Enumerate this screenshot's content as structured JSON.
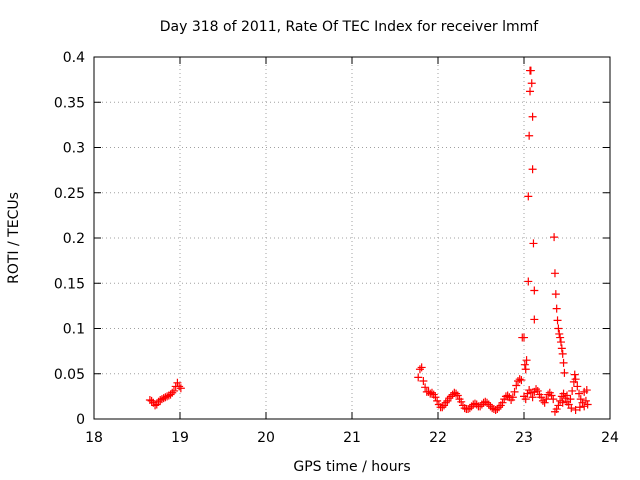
{
  "chart_data": {
    "type": "scatter",
    "title": "Day 318 of 2011, Rate Of TEC Index for receiver lmmf",
    "xlabel": "GPS time / hours",
    "ylabel": "ROTI / TECUs",
    "xlim": [
      18,
      24
    ],
    "ylim": [
      0,
      0.4
    ],
    "grid": true,
    "marker": "+",
    "marker_color": "#ff0000",
    "x_ticks": [
      {
        "value": 18,
        "label": "18"
      },
      {
        "value": 19,
        "label": "19"
      },
      {
        "value": 20,
        "label": "20"
      },
      {
        "value": 21,
        "label": "21"
      },
      {
        "value": 22,
        "label": "22"
      },
      {
        "value": 23,
        "label": "23"
      },
      {
        "value": 24,
        "label": "24"
      }
    ],
    "y_ticks": [
      {
        "value": 0,
        "label": "0"
      },
      {
        "value": 0.05,
        "label": "0.05"
      },
      {
        "value": 0.1,
        "label": "0.1"
      },
      {
        "value": 0.15,
        "label": "0.15"
      },
      {
        "value": 0.2,
        "label": "0.2"
      },
      {
        "value": 0.25,
        "label": "0.25"
      },
      {
        "value": 0.3,
        "label": "0.3"
      },
      {
        "value": 0.35,
        "label": "0.35"
      },
      {
        "value": 0.4,
        "label": "0.4"
      }
    ],
    "series": [
      {
        "name": "ROTI",
        "points": [
          [
            18.65,
            0.021
          ],
          [
            18.67,
            0.02
          ],
          [
            18.69,
            0.018
          ],
          [
            18.71,
            0.015
          ],
          [
            18.73,
            0.016
          ],
          [
            18.75,
            0.019
          ],
          [
            18.77,
            0.021
          ],
          [
            18.79,
            0.022
          ],
          [
            18.81,
            0.023
          ],
          [
            18.83,
            0.024
          ],
          [
            18.85,
            0.025
          ],
          [
            18.87,
            0.026
          ],
          [
            18.89,
            0.027
          ],
          [
            18.91,
            0.029
          ],
          [
            18.93,
            0.031
          ],
          [
            18.95,
            0.036
          ],
          [
            18.97,
            0.04
          ],
          [
            18.99,
            0.036
          ],
          [
            19.01,
            0.034
          ],
          [
            21.77,
            0.046
          ],
          [
            21.79,
            0.055
          ],
          [
            21.81,
            0.057
          ],
          [
            21.83,
            0.042
          ],
          [
            21.85,
            0.035
          ],
          [
            21.87,
            0.03
          ],
          [
            21.89,
            0.03
          ],
          [
            21.91,
            0.028
          ],
          [
            21.93,
            0.029
          ],
          [
            21.95,
            0.027
          ],
          [
            21.97,
            0.024
          ],
          [
            21.99,
            0.02
          ],
          [
            22.01,
            0.016
          ],
          [
            22.03,
            0.013
          ],
          [
            22.05,
            0.013
          ],
          [
            22.07,
            0.015
          ],
          [
            22.09,
            0.018
          ],
          [
            22.11,
            0.02
          ],
          [
            22.13,
            0.023
          ],
          [
            22.15,
            0.025
          ],
          [
            22.17,
            0.027
          ],
          [
            22.19,
            0.029
          ],
          [
            22.21,
            0.028
          ],
          [
            22.23,
            0.026
          ],
          [
            22.25,
            0.022
          ],
          [
            22.27,
            0.019
          ],
          [
            22.29,
            0.015
          ],
          [
            22.31,
            0.012
          ],
          [
            22.33,
            0.011
          ],
          [
            22.35,
            0.011
          ],
          [
            22.37,
            0.012
          ],
          [
            22.39,
            0.014
          ],
          [
            22.41,
            0.016
          ],
          [
            22.43,
            0.017
          ],
          [
            22.45,
            0.016
          ],
          [
            22.47,
            0.014
          ],
          [
            22.49,
            0.014
          ],
          [
            22.51,
            0.016
          ],
          [
            22.53,
            0.018
          ],
          [
            22.55,
            0.019
          ],
          [
            22.57,
            0.018
          ],
          [
            22.59,
            0.016
          ],
          [
            22.61,
            0.014
          ],
          [
            22.63,
            0.012
          ],
          [
            22.65,
            0.011
          ],
          [
            22.67,
            0.01
          ],
          [
            22.69,
            0.011
          ],
          [
            22.71,
            0.013
          ],
          [
            22.73,
            0.015
          ],
          [
            22.75,
            0.018
          ],
          [
            22.77,
            0.022
          ],
          [
            22.79,
            0.025
          ],
          [
            22.81,
            0.026
          ],
          [
            22.83,
            0.024
          ],
          [
            22.85,
            0.021
          ],
          [
            22.87,
            0.024
          ],
          [
            22.89,
            0.03
          ],
          [
            22.91,
            0.037
          ],
          [
            22.93,
            0.042
          ],
          [
            22.95,
            0.044
          ],
          [
            22.97,
            0.043
          ],
          [
            22.98,
            0.09
          ],
          [
            23.0,
            0.09
          ],
          [
            23.01,
            0.06
          ],
          [
            23.02,
            0.055
          ],
          [
            23.03,
            0.065
          ],
          [
            23.05,
            0.152
          ],
          [
            23.05,
            0.246
          ],
          [
            23.06,
            0.313
          ],
          [
            23.07,
            0.362
          ],
          [
            23.07,
            0.385
          ],
          [
            23.08,
            0.385
          ],
          [
            23.09,
            0.371
          ],
          [
            23.1,
            0.334
          ],
          [
            23.1,
            0.276
          ],
          [
            23.11,
            0.194
          ],
          [
            23.12,
            0.142
          ],
          [
            23.12,
            0.11
          ],
          [
            23.0,
            0.025
          ],
          [
            23.02,
            0.022
          ],
          [
            23.04,
            0.028
          ],
          [
            23.06,
            0.032
          ],
          [
            23.08,
            0.029
          ],
          [
            23.1,
            0.024
          ],
          [
            23.12,
            0.03
          ],
          [
            23.14,
            0.033
          ],
          [
            23.16,
            0.031
          ],
          [
            23.18,
            0.027
          ],
          [
            23.2,
            0.024
          ],
          [
            23.22,
            0.02
          ],
          [
            23.24,
            0.018
          ],
          [
            23.26,
            0.022
          ],
          [
            23.28,
            0.027
          ],
          [
            23.3,
            0.029
          ],
          [
            23.32,
            0.026
          ],
          [
            23.34,
            0.022
          ],
          [
            23.35,
            0.201
          ],
          [
            23.36,
            0.161
          ],
          [
            23.37,
            0.138
          ],
          [
            23.38,
            0.122
          ],
          [
            23.39,
            0.109
          ],
          [
            23.4,
            0.1
          ],
          [
            23.41,
            0.094
          ],
          [
            23.42,
            0.09
          ],
          [
            23.43,
            0.085
          ],
          [
            23.44,
            0.078
          ],
          [
            23.45,
            0.072
          ],
          [
            23.46,
            0.062
          ],
          [
            23.47,
            0.051
          ],
          [
            23.36,
            0.008
          ],
          [
            23.38,
            0.011
          ],
          [
            23.4,
            0.015
          ],
          [
            23.42,
            0.02
          ],
          [
            23.44,
            0.025
          ],
          [
            23.46,
            0.028
          ],
          [
            23.48,
            0.023
          ],
          [
            23.5,
            0.019
          ],
          [
            23.52,
            0.016
          ],
          [
            23.54,
            0.022
          ],
          [
            23.56,
            0.031
          ],
          [
            23.58,
            0.041
          ],
          [
            23.59,
            0.049
          ],
          [
            23.6,
            0.044
          ],
          [
            23.62,
            0.036
          ],
          [
            23.64,
            0.028
          ],
          [
            23.66,
            0.022
          ],
          [
            23.68,
            0.018
          ],
          [
            23.7,
            0.014
          ],
          [
            23.72,
            0.02
          ],
          [
            23.73,
            0.032
          ],
          [
            23.74,
            0.016
          ],
          [
            23.45,
            0.018
          ],
          [
            23.5,
            0.026
          ],
          [
            23.55,
            0.012
          ],
          [
            23.6,
            0.01
          ],
          [
            23.65,
            0.013
          ],
          [
            23.7,
            0.03
          ]
        ]
      }
    ]
  }
}
